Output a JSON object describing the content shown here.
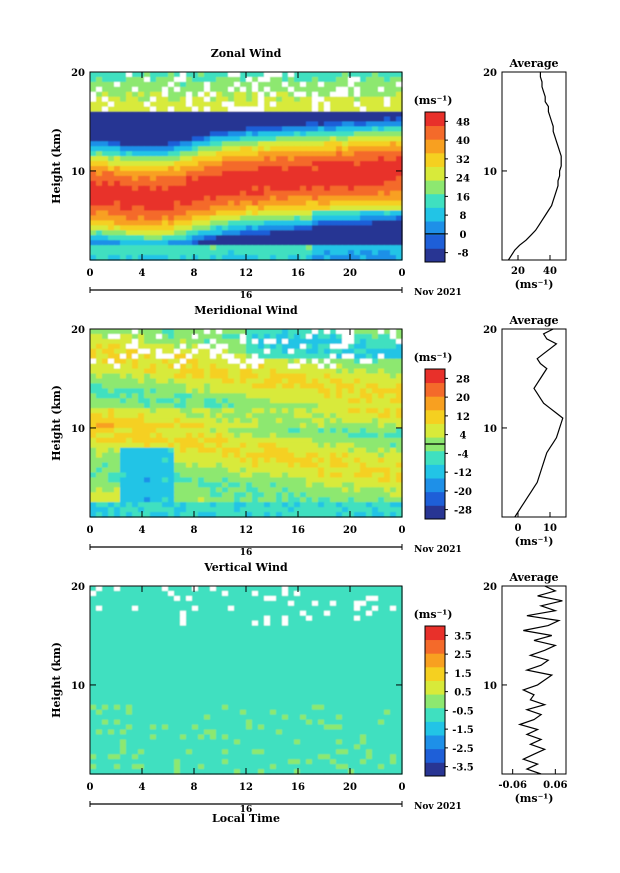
{
  "figure": {
    "x_axis_label": "Local Time",
    "date_label": "Nov 2021",
    "day_label": "16",
    "cbar_unit": "(ms⁻¹)",
    "avg_unit": "(ms⁻¹)"
  },
  "chart_data": [
    {
      "type": "heatmap",
      "title": "Zonal Wind",
      "ylabel": "Height (km)",
      "xlabel": "",
      "x_ticks": [
        "0",
        "4",
        "8",
        "12",
        "16",
        "20",
        "0"
      ],
      "x_range": [
        0,
        24
      ],
      "y_ticks": [
        "20",
        "10"
      ],
      "y_range": [
        1,
        20
      ],
      "colorbar_ticks": [
        "48",
        "40",
        "32",
        "24",
        "16",
        "8",
        "0",
        "-8"
      ],
      "colorbar_range": [
        -12,
        52
      ],
      "colorbar_zero_line": 0,
      "profile_title": "Average",
      "profile_x_ticks": [
        "20",
        "40"
      ],
      "profile_x_range": [
        10,
        50
      ],
      "profile": {
        "height": [
          1,
          1.5,
          2,
          2.5,
          3,
          3.5,
          4,
          4.5,
          5,
          5.5,
          6,
          6.5,
          7,
          7.5,
          8,
          8.5,
          9,
          9.5,
          10,
          10.5,
          11,
          11.5,
          12,
          12.5,
          13,
          13.5,
          14,
          14.5,
          15,
          15.5,
          16,
          16.5,
          17,
          17.5,
          18,
          18.5,
          19,
          19.5,
          20
        ],
        "value": [
          14,
          16,
          18,
          21,
          25,
          28,
          31,
          33,
          35,
          37,
          39,
          41,
          42,
          43,
          44,
          45,
          45,
          46,
          46,
          47,
          47,
          47,
          46,
          45,
          44,
          43,
          42,
          42,
          41,
          40,
          39,
          39,
          37,
          37,
          36,
          35,
          35,
          34,
          34
        ]
      }
    },
    {
      "type": "heatmap",
      "title": "Meridional Wind",
      "ylabel": "Height (km)",
      "xlabel": "",
      "x_ticks": [
        "0",
        "4",
        "8",
        "12",
        "16",
        "20",
        "0"
      ],
      "x_range": [
        0,
        24
      ],
      "y_ticks": [
        "20",
        "10"
      ],
      "y_range": [
        1,
        20
      ],
      "colorbar_ticks": [
        "28",
        "20",
        "12",
        "4",
        "-4",
        "-12",
        "-20",
        "-28"
      ],
      "colorbar_range": [
        -32,
        32
      ],
      "colorbar_zero_line": 0,
      "profile_title": "Average",
      "profile_x_ticks": [
        "0",
        "10"
      ],
      "profile_x_range": [
        -5,
        15
      ],
      "profile": {
        "height": [
          1,
          1.5,
          2,
          2.5,
          3,
          3.5,
          4,
          4.5,
          5,
          5.5,
          6,
          6.5,
          7,
          7.5,
          8,
          8.5,
          9,
          9.5,
          10,
          10.5,
          11,
          11.5,
          12,
          12.5,
          13,
          13.5,
          14,
          14.5,
          15,
          15.5,
          16,
          16.5,
          17,
          17.5,
          18,
          18.5,
          19,
          19.5,
          20
        ],
        "value": [
          -1,
          0,
          1,
          2,
          3,
          4,
          5,
          6,
          6.5,
          7,
          7.5,
          8,
          8.5,
          9,
          10,
          11,
          12,
          12.5,
          13,
          13.5,
          14,
          12,
          10,
          8,
          7,
          6,
          5,
          6,
          7,
          8,
          9,
          7,
          6,
          8,
          10,
          12,
          9,
          8,
          11
        ]
      }
    },
    {
      "type": "heatmap",
      "title": "Vertical Wind",
      "ylabel": "Height (km)",
      "xlabel": "Local Time",
      "x_ticks": [
        "0",
        "4",
        "8",
        "12",
        "16",
        "20",
        "0"
      ],
      "x_range": [
        0,
        24
      ],
      "y_ticks": [
        "20",
        "10"
      ],
      "y_range": [
        1,
        20
      ],
      "colorbar_ticks": [
        "3.5",
        "2.5",
        "1.5",
        "0.5",
        "-0.5",
        "-1.5",
        "-2.5",
        "-3.5"
      ],
      "colorbar_range": [
        -4,
        4
      ],
      "colorbar_zero_line": null,
      "profile_title": "Average",
      "profile_x_ticks": [
        "-0.06",
        "0.06"
      ],
      "profile_x_range": [
        -0.09,
        0.09
      ],
      "profile": {
        "height": [
          1,
          1.5,
          2,
          2.5,
          3,
          3.5,
          4,
          4.5,
          5,
          5.5,
          6,
          6.5,
          7,
          7.5,
          8,
          8.5,
          9,
          9.5,
          10,
          10.5,
          11,
          11.5,
          12,
          12.5,
          13,
          13.5,
          14,
          14.5,
          15,
          15.5,
          16,
          16.5,
          17,
          17.5,
          18,
          18.5,
          19,
          19.5,
          20
        ],
        "value": [
          0.02,
          -0.02,
          0.01,
          -0.03,
          0.0,
          0.03,
          -0.01,
          0.02,
          -0.02,
          0.01,
          -0.04,
          0.0,
          0.02,
          -0.02,
          0.03,
          -0.01,
          0.0,
          -0.03,
          0.01,
          0.03,
          0.05,
          -0.02,
          0.02,
          0.04,
          -0.01,
          0.03,
          0.06,
          0.0,
          0.05,
          -0.03,
          0.04,
          0.07,
          -0.02,
          0.06,
          0.02,
          0.08,
          0.01,
          0.06,
          0.03
        ]
      }
    }
  ],
  "colors": {
    "colormap": [
      "#283593",
      "#1e5fd8",
      "#1e90e8",
      "#22c4e6",
      "#3fe0c0",
      "#8de870",
      "#d8ea3a",
      "#f5d020",
      "#f8a020",
      "#f46a2a",
      "#e8302a"
    ],
    "text": "#000000"
  }
}
